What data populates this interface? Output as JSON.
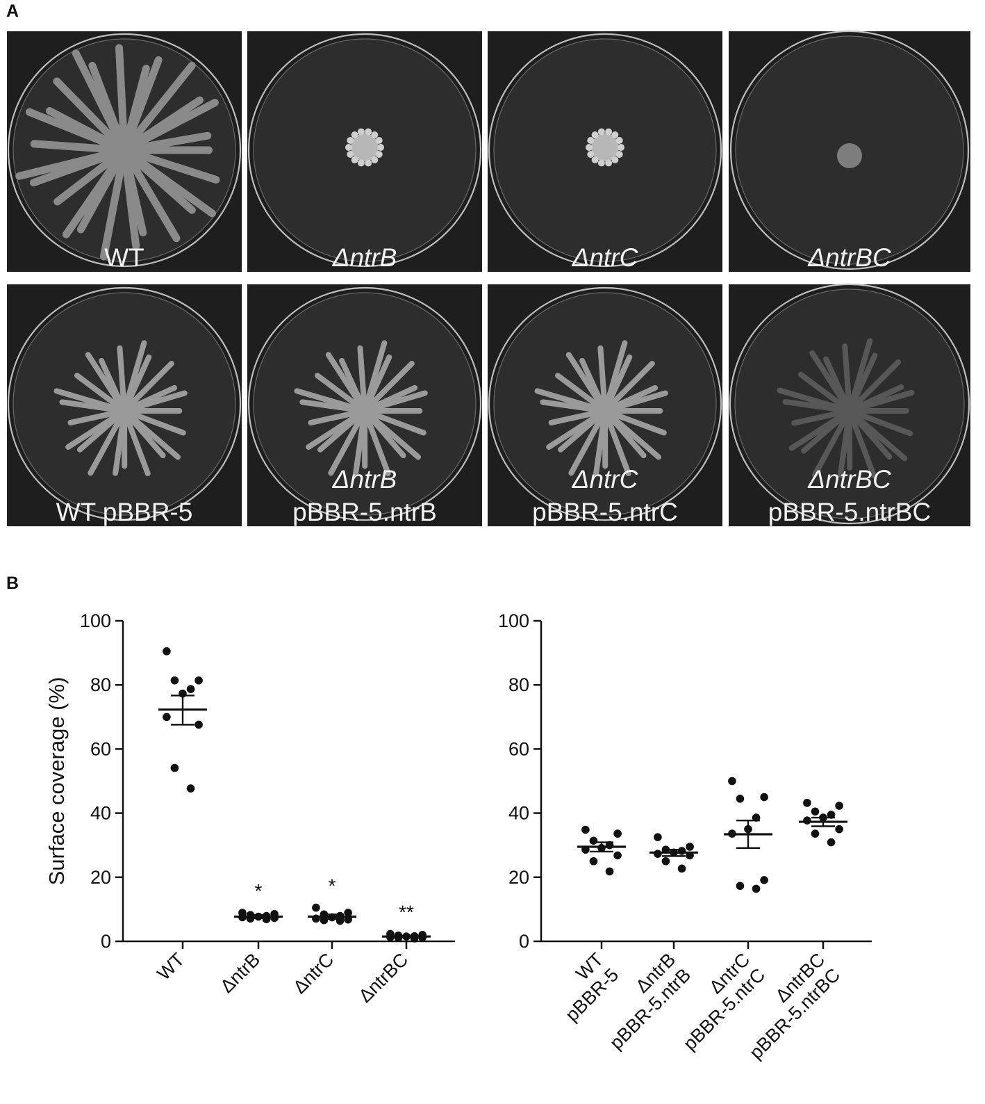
{
  "panel_a": {
    "letter": "A",
    "plates": [
      {
        "line1": "WT",
        "line2": "",
        "colony": "large-swarm"
      },
      {
        "line1": "ΔntrB",
        "line2": "",
        "colony": "small"
      },
      {
        "line1": "ΔntrC",
        "line2": "",
        "colony": "small"
      },
      {
        "line1": "ΔntrBC",
        "line2": "",
        "colony": "dot"
      },
      {
        "line1": "WT pBBR-5",
        "line2": "",
        "colony": "medium-swarm"
      },
      {
        "line1": "ΔntrB",
        "line2": "pBBR-5.ntrB",
        "colony": "medium-swarm"
      },
      {
        "line1": "ΔntrC",
        "line2": "pBBR-5.ntrC",
        "colony": "medium-swarm"
      },
      {
        "line1": "ΔntrBC",
        "line2": "pBBR-5.ntrBC",
        "colony": "faint-swarm"
      }
    ]
  },
  "panel_b": {
    "letter": "B"
  },
  "chart_data": [
    {
      "type": "scatter",
      "ylabel": "Surface coverage (%)",
      "ylim": [
        0,
        100
      ],
      "yticks": [
        0,
        20,
        40,
        60,
        80,
        100
      ],
      "categories": [
        {
          "label": "WT",
          "label2": "",
          "significance": "",
          "mean": 72.3,
          "sem_low": 67.6,
          "sem_high": 76.7,
          "points": [
            90.5,
            81.4,
            81.4,
            78.7,
            77.3,
            70.0,
            67.6,
            54.1,
            47.7
          ]
        },
        {
          "label": "ΔntrB",
          "label2": "",
          "significance": "*",
          "mean": 7.7,
          "sem_low": 7.2,
          "sem_high": 8.2,
          "points": [
            8.9,
            8.5,
            8.2,
            7.9,
            7.7,
            7.5,
            7.3,
            7.1,
            6.9
          ]
        },
        {
          "label": "ΔntrC",
          "label2": "",
          "significance": "*",
          "mean": 7.7,
          "sem_low": 7.0,
          "sem_high": 8.4,
          "points": [
            10.5,
            8.9,
            8.4,
            7.9,
            7.5,
            7.1,
            6.8,
            6.6,
            6.4
          ]
        },
        {
          "label": "ΔntrBC",
          "label2": "",
          "significance": "**",
          "mean": 1.5,
          "sem_low": 1.2,
          "sem_high": 1.8,
          "points": [
            2.3,
            2.0,
            1.8,
            1.6,
            1.5,
            1.3,
            1.2,
            1.1,
            0.9
          ]
        }
      ]
    },
    {
      "type": "scatter",
      "ylabel": "Surface coverage (%)",
      "ylim": [
        0,
        100
      ],
      "yticks": [
        0,
        20,
        40,
        60,
        80,
        100
      ],
      "categories": [
        {
          "label": "WT",
          "label2": "pBBR-5",
          "significance": "",
          "mean": 29.5,
          "sem_low": 28.0,
          "sem_high": 30.9,
          "points": [
            34.8,
            33.6,
            31.4,
            30.0,
            29.1,
            28.6,
            26.8,
            25.0,
            21.8
          ]
        },
        {
          "label": "ΔntrB",
          "label2": "pBBR-5.ntrB",
          "significance": "",
          "mean": 27.7,
          "sem_low": 26.6,
          "sem_high": 28.6,
          "points": [
            32.5,
            29.5,
            28.6,
            28.2,
            27.7,
            27.3,
            26.8,
            25.0,
            22.7
          ]
        },
        {
          "label": "ΔntrC",
          "label2": "pBBR-5.ntrC",
          "significance": "",
          "mean": 33.4,
          "sem_low": 29.1,
          "sem_high": 37.7,
          "points": [
            50.0,
            45.0,
            44.5,
            38.6,
            35.0,
            33.6,
            19.1,
            17.3,
            16.4
          ]
        },
        {
          "label": "ΔntrBC",
          "label2": "pBBR-5.ntrBC",
          "significance": "",
          "mean": 37.3,
          "sem_low": 35.9,
          "sem_high": 38.6,
          "points": [
            43.2,
            42.3,
            40.5,
            39.5,
            38.6,
            37.7,
            35.0,
            33.6,
            30.9
          ]
        }
      ]
    }
  ]
}
